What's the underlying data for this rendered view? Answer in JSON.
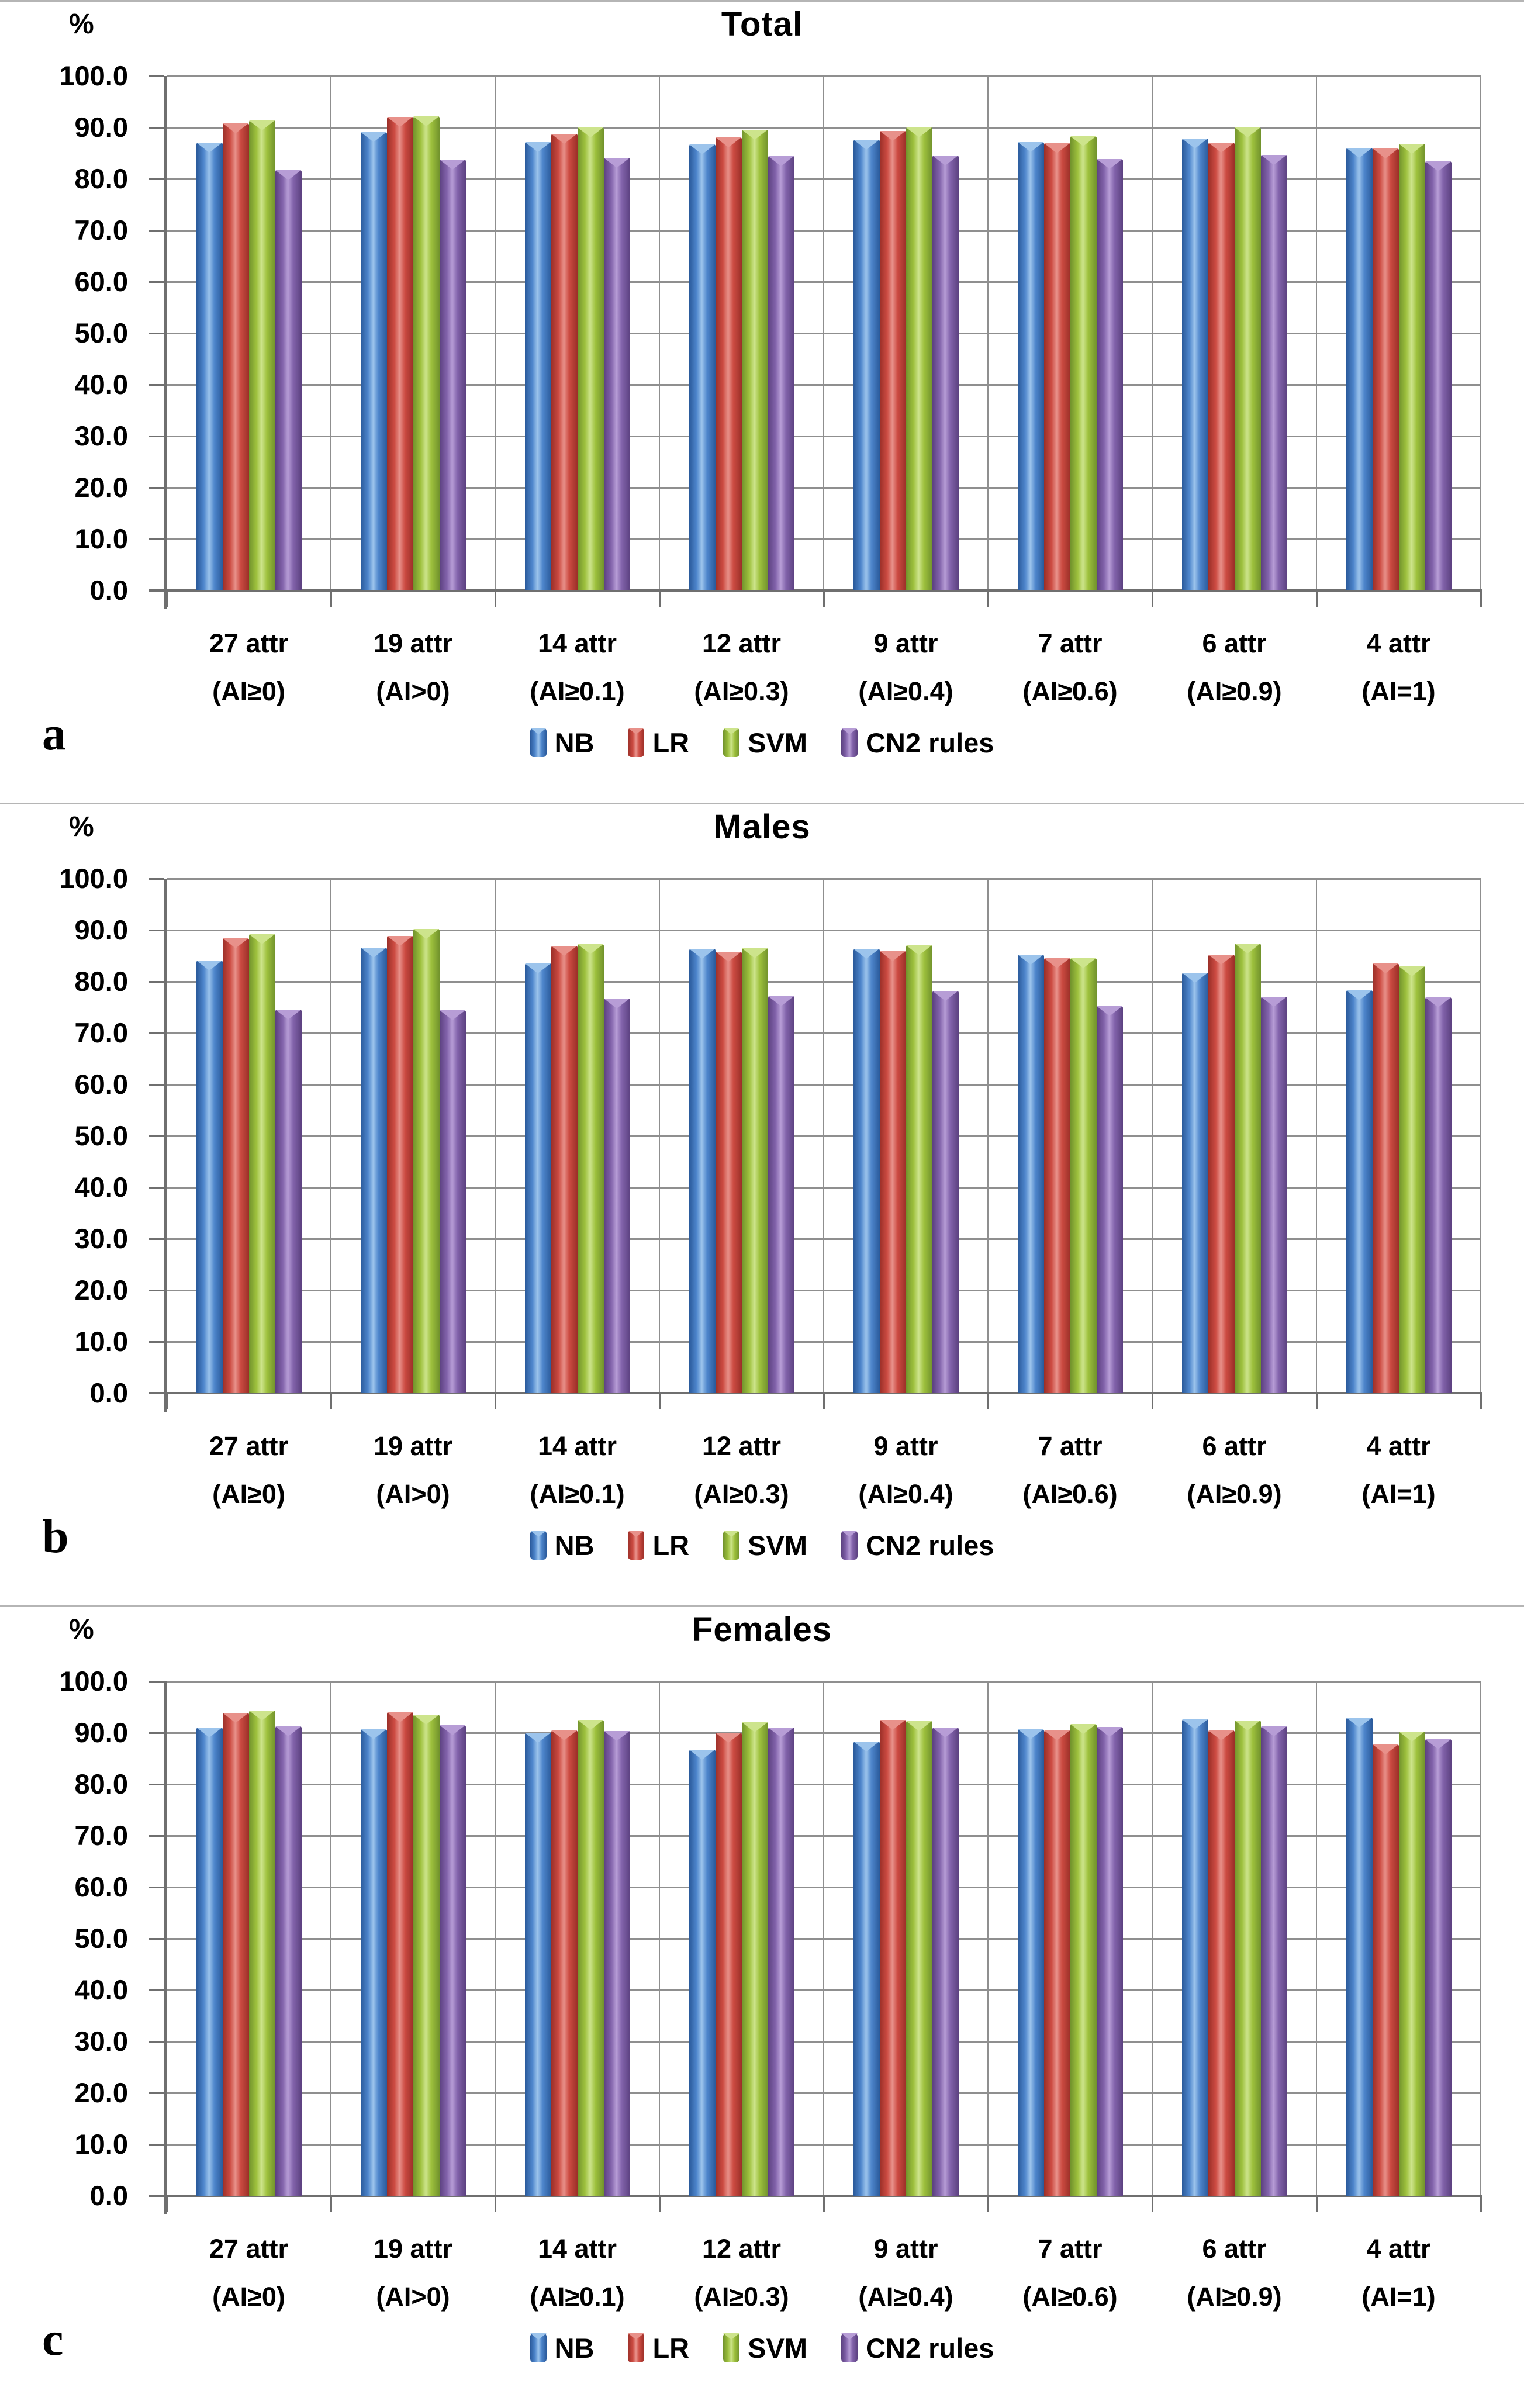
{
  "figure": {
    "panel_letters": [
      "a",
      "b",
      "c"
    ],
    "y_axis_unit": "%",
    "y_tick_labels": [
      "100.0",
      "90.0",
      "80.0",
      "70.0",
      "60.0",
      "50.0",
      "40.0",
      "30.0",
      "20.0",
      "10.0",
      "0.0"
    ],
    "legend_labels": [
      "NB",
      "LR",
      "SVM",
      "CN2 rules"
    ]
  },
  "colors": {
    "gridline": "#8f8f8f",
    "axis": "#6f6f6f",
    "separator": "#b5b5b5",
    "text": "#000000",
    "series": [
      {
        "name": "NB",
        "base": "#4F81BD",
        "dark": "#2A5A9B",
        "mid": "#4E86CC",
        "light": "#9CC4EC"
      },
      {
        "name": "LR",
        "base": "#C0504D",
        "dark": "#9B2F28",
        "mid": "#CC4B42",
        "light": "#E8918A"
      },
      {
        "name": "SVM",
        "base": "#9BBB59",
        "dark": "#71922C",
        "mid": "#9EC13D",
        "light": "#CDE48C"
      },
      {
        "name": "CN2 rules",
        "base": "#8064A2",
        "dark": "#5C4180",
        "mid": "#8263AB",
        "light": "#B79DD6"
      }
    ]
  },
  "chart_data": [
    {
      "type": "bar",
      "title": "Total",
      "panel_letter": "a",
      "ylabel": "%",
      "ylim": [
        0,
        100
      ],
      "ytick_step": 10,
      "grid": true,
      "legend_position": "bottom",
      "categories": [
        {
          "top": "27 attr",
          "bottom": "(AI≥0)"
        },
        {
          "top": "19 attr",
          "bottom": "(AI>0)"
        },
        {
          "top": "14 attr",
          "bottom": "(AI≥0.1)"
        },
        {
          "top": "12 attr",
          "bottom": "(AI≥0.3)"
        },
        {
          "top": "9 attr",
          "bottom": "(AI≥0.4)"
        },
        {
          "top": "7 attr",
          "bottom": "(AI≥0.6)"
        },
        {
          "top": "6 attr",
          "bottom": "(AI≥0.9)"
        },
        {
          "top": "4 attr",
          "bottom": "(AI=1)"
        }
      ],
      "series": [
        {
          "name": "NB",
          "values": [
            87.1,
            89.1,
            87.2,
            86.7,
            87.6,
            87.2,
            87.8,
            86.0
          ]
        },
        {
          "name": "LR",
          "values": [
            90.8,
            92.0,
            88.8,
            88.1,
            89.3,
            86.9,
            87.1,
            85.9
          ]
        },
        {
          "name": "SVM",
          "values": [
            91.4,
            92.2,
            90.0,
            89.6,
            90.0,
            88.3,
            90.0,
            86.8
          ]
        },
        {
          "name": "CN2 rules",
          "values": [
            81.7,
            83.7,
            84.1,
            84.4,
            84.6,
            83.9,
            84.7,
            83.4
          ]
        }
      ]
    },
    {
      "type": "bar",
      "title": "Males",
      "panel_letter": "b",
      "ylabel": "%",
      "ylim": [
        0,
        100
      ],
      "ytick_step": 10,
      "grid": true,
      "legend_position": "bottom",
      "categories": [
        {
          "top": "27 attr",
          "bottom": "(AI≥0)"
        },
        {
          "top": "19 attr",
          "bottom": "(AI>0)"
        },
        {
          "top": "14 attr",
          "bottom": "(AI≥0.1)"
        },
        {
          "top": "12 attr",
          "bottom": "(AI≥0.3)"
        },
        {
          "top": "9 attr",
          "bottom": "(AI≥0.4)"
        },
        {
          "top": "7 attr",
          "bottom": "(AI≥0.6)"
        },
        {
          "top": "6 attr",
          "bottom": "(AI≥0.9)"
        },
        {
          "top": "4 attr",
          "bottom": "(AI=1)"
        }
      ],
      "series": [
        {
          "name": "NB",
          "values": [
            84.1,
            86.6,
            83.5,
            86.4,
            86.4,
            85.2,
            81.7,
            78.3
          ]
        },
        {
          "name": "LR",
          "values": [
            88.4,
            88.9,
            86.9,
            85.8,
            85.9,
            84.6,
            85.2,
            83.5
          ]
        },
        {
          "name": "SVM",
          "values": [
            89.2,
            90.2,
            87.3,
            86.5,
            87.0,
            84.6,
            87.4,
            83.0
          ]
        },
        {
          "name": "CN2 rules",
          "values": [
            74.5,
            74.4,
            76.7,
            77.2,
            78.2,
            75.2,
            77.1,
            76.9
          ]
        }
      ]
    },
    {
      "type": "bar",
      "title": "Females",
      "panel_letter": "c",
      "ylabel": "%",
      "ylim": [
        0,
        100
      ],
      "ytick_step": 10,
      "grid": true,
      "legend_position": "bottom",
      "categories": [
        {
          "top": "27 attr",
          "bottom": "(AI≥0)"
        },
        {
          "top": "19 attr",
          "bottom": "(AI>0)"
        },
        {
          "top": "14 attr",
          "bottom": "(AI≥0.1)"
        },
        {
          "top": "12 attr",
          "bottom": "(AI≥0.3)"
        },
        {
          "top": "9 attr",
          "bottom": "(AI≥0.4)"
        },
        {
          "top": "7 attr",
          "bottom": "(AI≥0.6)"
        },
        {
          "top": "6 attr",
          "bottom": "(AI≥0.9)"
        },
        {
          "top": "4 attr",
          "bottom": "(AI=1)"
        }
      ],
      "series": [
        {
          "name": "NB",
          "values": [
            91.0,
            90.7,
            90.0,
            86.7,
            88.3,
            90.7,
            92.6,
            92.9
          ]
        },
        {
          "name": "LR",
          "values": [
            93.9,
            94.0,
            90.4,
            90.0,
            92.5,
            90.4,
            90.4,
            87.7
          ]
        },
        {
          "name": "SVM",
          "values": [
            94.3,
            93.5,
            92.5,
            92.0,
            92.3,
            91.7,
            92.4,
            90.2
          ]
        },
        {
          "name": "CN2 rules",
          "values": [
            91.3,
            91.5,
            90.3,
            91.0,
            91.0,
            91.1,
            91.2,
            88.8
          ]
        }
      ]
    }
  ]
}
